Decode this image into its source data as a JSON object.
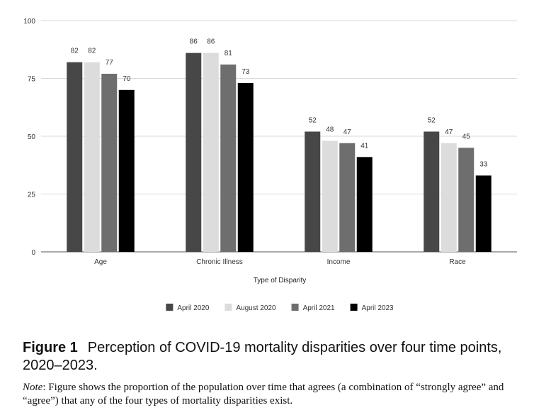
{
  "chart_data": {
    "type": "bar",
    "title": "",
    "xlabel": "Type of Disparity",
    "ylabel": "",
    "ylim": [
      0,
      100
    ],
    "yticks": [
      0,
      25,
      50,
      75,
      100
    ],
    "grid": true,
    "legend_position": "bottom",
    "categories": [
      "Age",
      "Chronic Illness",
      "Income",
      "Race"
    ],
    "series": [
      {
        "name": "April 2020",
        "color": "#474747",
        "values": [
          82,
          86,
          52,
          52
        ]
      },
      {
        "name": "August 2020",
        "color": "#dcdcdc",
        "values": [
          82,
          86,
          48,
          47
        ]
      },
      {
        "name": "April 2021",
        "color": "#6e6e6e",
        "values": [
          77,
          81,
          47,
          45
        ]
      },
      {
        "name": "April 2023",
        "color": "#000000",
        "values": [
          70,
          73,
          41,
          33
        ]
      }
    ]
  },
  "caption": {
    "label": "Figure 1",
    "text": "Perception of COVID-19 mortality disparities over four time points, 2020–2023."
  },
  "note": {
    "label": "Note",
    "text": ": Figure shows the proportion of the population over time that agrees (a combination of “strongly agree” and “agree”) that any of the four types of mortality disparities exist."
  }
}
